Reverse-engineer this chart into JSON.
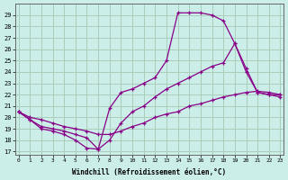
{
  "background_color": "#cceee8",
  "grid_color": "#aaccbb",
  "line_color": "#880088",
  "xlim": [
    -0.3,
    23.3
  ],
  "ylim": [
    16.7,
    30.0
  ],
  "yticks": [
    17,
    18,
    19,
    20,
    21,
    22,
    23,
    24,
    25,
    26,
    27,
    28,
    29
  ],
  "xticks": [
    0,
    1,
    2,
    3,
    4,
    5,
    6,
    7,
    8,
    9,
    10,
    11,
    12,
    13,
    14,
    15,
    16,
    17,
    18,
    19,
    20,
    21,
    22,
    23
  ],
  "xlabel": "Windchill (Refroidissement éolien,°C)",
  "line1_x": [
    0,
    1,
    2,
    3,
    4,
    5,
    6,
    7,
    8,
    9,
    10,
    11,
    12,
    13,
    14,
    15,
    16,
    17,
    18,
    19,
    20,
    21,
    22,
    23
  ],
  "line1_y": [
    20.5,
    19.8,
    19.0,
    18.8,
    18.5,
    18.0,
    17.3,
    17.2,
    20.8,
    22.2,
    22.5,
    23.0,
    23.5,
    25.0,
    29.2,
    29.2,
    29.2,
    29.0,
    28.5,
    26.5,
    24.0,
    22.2,
    22.0,
    22.0
  ],
  "line2_x": [
    0,
    1,
    2,
    3,
    4,
    5,
    6,
    7,
    8,
    9,
    10,
    11,
    12,
    13,
    14,
    15,
    16,
    17,
    18,
    19,
    20,
    21,
    22,
    23
  ],
  "line2_y": [
    20.5,
    19.8,
    19.2,
    19.0,
    18.8,
    18.5,
    18.2,
    17.2,
    18.0,
    19.5,
    20.5,
    21.0,
    21.8,
    22.5,
    23.0,
    23.5,
    24.0,
    24.5,
    24.8,
    26.5,
    24.3,
    22.2,
    22.0,
    21.8
  ],
  "line3_x": [
    0,
    1,
    2,
    3,
    4,
    5,
    6,
    7,
    8,
    9,
    10,
    11,
    12,
    13,
    14,
    15,
    16,
    17,
    18,
    19,
    20,
    21,
    22,
    23
  ],
  "line3_y": [
    20.5,
    20.0,
    19.8,
    19.5,
    19.2,
    19.0,
    18.8,
    18.5,
    18.5,
    18.8,
    19.2,
    19.5,
    20.0,
    20.3,
    20.5,
    21.0,
    21.2,
    21.5,
    21.8,
    22.0,
    22.2,
    22.3,
    22.2,
    22.0
  ]
}
